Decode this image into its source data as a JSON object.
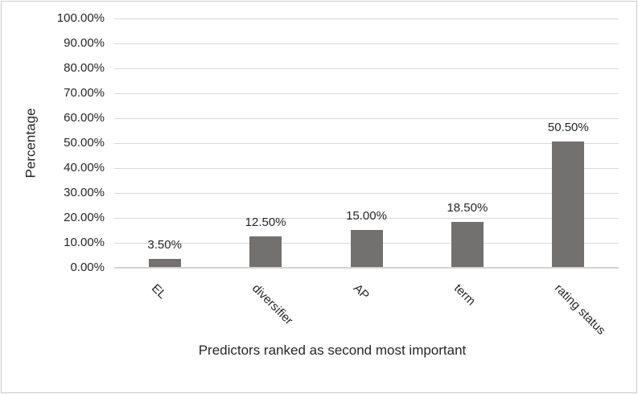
{
  "chart_data": {
    "type": "bar",
    "title": "",
    "categories": [
      "EL",
      "diversifier",
      "AP",
      "term",
      "rating status"
    ],
    "values": [
      3.5,
      12.5,
      15.0,
      18.5,
      50.5
    ],
    "value_labels": [
      "3.50%",
      "12.50%",
      "15.00%",
      "18.50%",
      "50.50%"
    ],
    "xlabel": "Predictors ranked as second most important",
    "ylabel": "Percentage",
    "ylim": [
      0,
      100
    ],
    "ytick_step": 10,
    "ytick_labels": [
      "0.00%",
      "10.00%",
      "20.00%",
      "30.00%",
      "40.00%",
      "50.00%",
      "60.00%",
      "70.00%",
      "80.00%",
      "90.00%",
      "100.00%"
    ],
    "grid": "horizontal",
    "legend": "none",
    "colors": {
      "bar": "#737070",
      "gridline": "#d9d9d9",
      "axis_line": "#d2d2d2",
      "text": "#262626",
      "background": "#ffffff"
    }
  }
}
